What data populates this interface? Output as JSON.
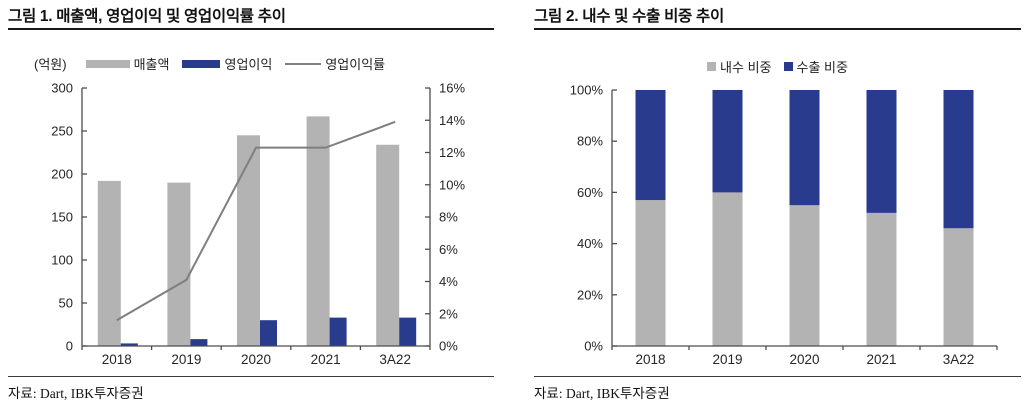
{
  "chart_data": [
    {
      "type": "combo-bar-line",
      "title": "그림 1. 매출액, 영업이익 및 영업이익률 추이",
      "unit_label": "(억원)",
      "source": "자료: Dart, IBK투자증권",
      "categories": [
        "2018",
        "2019",
        "2020",
        "2021",
        "3A22"
      ],
      "series": [
        {
          "name": "매출액",
          "type": "bar",
          "axis": "left",
          "color": "#b3b3b3",
          "values": [
            192,
            190,
            245,
            267,
            234
          ]
        },
        {
          "name": "영업이익",
          "type": "bar",
          "axis": "left",
          "color": "#283b8d",
          "values": [
            3,
            8,
            30,
            33,
            33
          ]
        },
        {
          "name": "영업이익률",
          "type": "line",
          "axis": "right",
          "color": "#7f7f7f",
          "values": [
            1.6,
            4.1,
            12.3,
            12.3,
            13.9
          ]
        }
      ],
      "left_axis": {
        "min": 0,
        "max": 300,
        "step": 50,
        "suffix": ""
      },
      "right_axis": {
        "min": 0,
        "max": 16,
        "step": 2,
        "suffix": "%"
      },
      "legend_position": "top",
      "grid": false
    },
    {
      "type": "stacked-bar",
      "title": "그림 2. 내수 및 수출 비중 추이",
      "source": "자료: Dart, IBK투자증권",
      "categories": [
        "2018",
        "2019",
        "2020",
        "2021",
        "3A22"
      ],
      "series": [
        {
          "name": "내수 비중",
          "color": "#b3b3b3",
          "values": [
            57,
            60,
            55,
            52,
            46
          ]
        },
        {
          "name": "수출 비중",
          "color": "#283b8d",
          "values": [
            43,
            40,
            45,
            48,
            54
          ]
        }
      ],
      "y_axis": {
        "min": 0,
        "max": 100,
        "step": 20,
        "suffix": "%"
      },
      "legend_position": "top",
      "grid": false
    }
  ],
  "style": {
    "axis_color": "#4d4d4d",
    "tick_text_color": "#262626",
    "background": "#ffffff"
  }
}
